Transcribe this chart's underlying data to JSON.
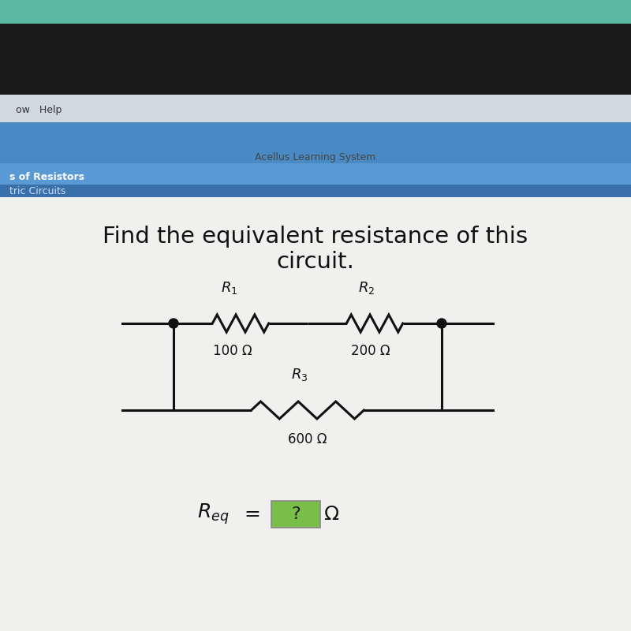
{
  "title_line1": "Find the equivalent resistance of this",
  "title_line2": "circuit.",
  "title_fontsize": 21,
  "bg_outer": "#8a8a6a",
  "bg_teal": "#5cb8a0",
  "bg_dark": "#1a1a1a",
  "bg_menubar": "#d0d8e0",
  "bg_blue1": "#4a8ac4",
  "bg_blue2": "#5a9ad4",
  "bg_blue3": "#3a70aa",
  "bg_white": "#f0f0ee",
  "acellus_text": "Acellus Learning System",
  "menu_left": "ow   Help",
  "menu_text1": "s of Resistors",
  "menu_text2": "tric Circuits",
  "r1_value": "100 Ω",
  "r2_value": "200 Ω",
  "r3_value": "600 Ω",
  "box_color": "#7abe4a",
  "line_color": "#111111",
  "text_color": "#111111"
}
